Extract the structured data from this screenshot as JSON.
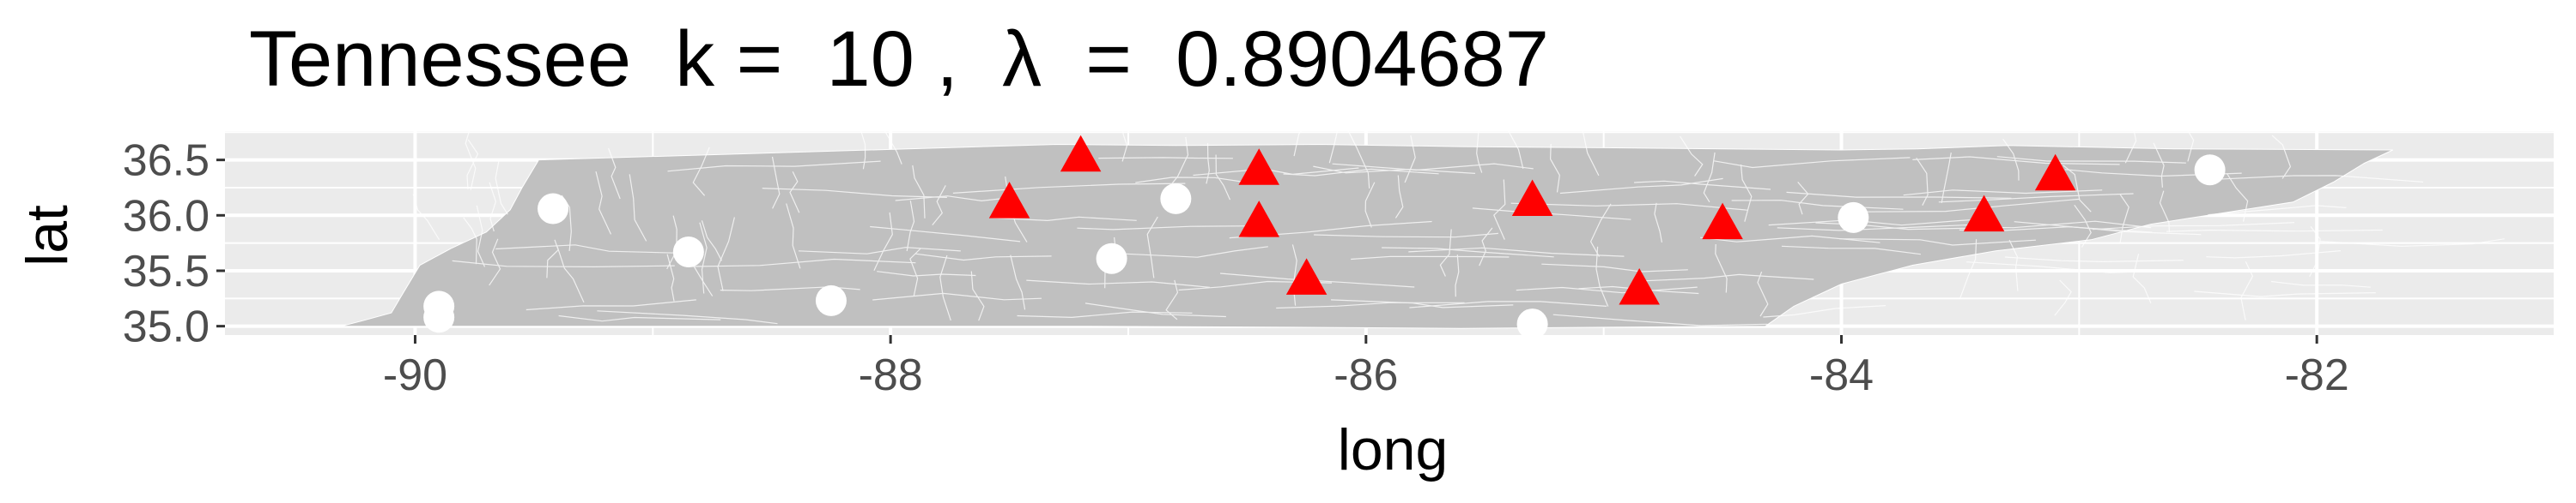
{
  "chart_data": {
    "type": "scatter",
    "title": "Tennessee  k =  10 ,  λ  =  0.8904687",
    "xlabel": "long",
    "ylabel": "lat",
    "xlim": [
      -90.8,
      -81.0
    ],
    "ylim": [
      34.92,
      36.76
    ],
    "x_ticks": [
      -90,
      -88,
      -86,
      -84,
      -82
    ],
    "x_tick_labels": [
      "-90",
      "-88",
      "-86",
      "-84",
      "-82"
    ],
    "y_ticks": [
      35.0,
      35.5,
      36.0,
      36.5
    ],
    "y_tick_labels": [
      "35.0",
      "35.5",
      "36.0",
      "36.5"
    ],
    "grid": true,
    "legend": "none",
    "colors": {
      "panel": "#ebebeb",
      "state_fill": "#c0c0c0",
      "state_borders": "#ffffff",
      "triangles": "#ff0000",
      "circles": "#ffffff"
    },
    "series": [
      {
        "marker": "triangle",
        "x": [
          -87.2,
          -87.5,
          -86.45,
          -86.45,
          -86.25,
          -85.3,
          -84.85,
          -84.5,
          -83.4,
          -83.1
        ],
        "y": [
          36.53,
          36.11,
          36.41,
          35.94,
          35.42,
          36.13,
          35.33,
          35.92,
          35.99,
          36.36
        ]
      },
      {
        "marker": "circle",
        "x": [
          -89.9,
          -89.9,
          -89.42,
          -88.85,
          -88.25,
          -87.07,
          -86.8,
          -85.3,
          -83.95,
          -82.45
        ],
        "y": [
          35.18,
          35.08,
          36.06,
          35.67,
          35.23,
          35.61,
          36.15,
          35.02,
          35.98,
          36.41
        ]
      }
    ]
  }
}
